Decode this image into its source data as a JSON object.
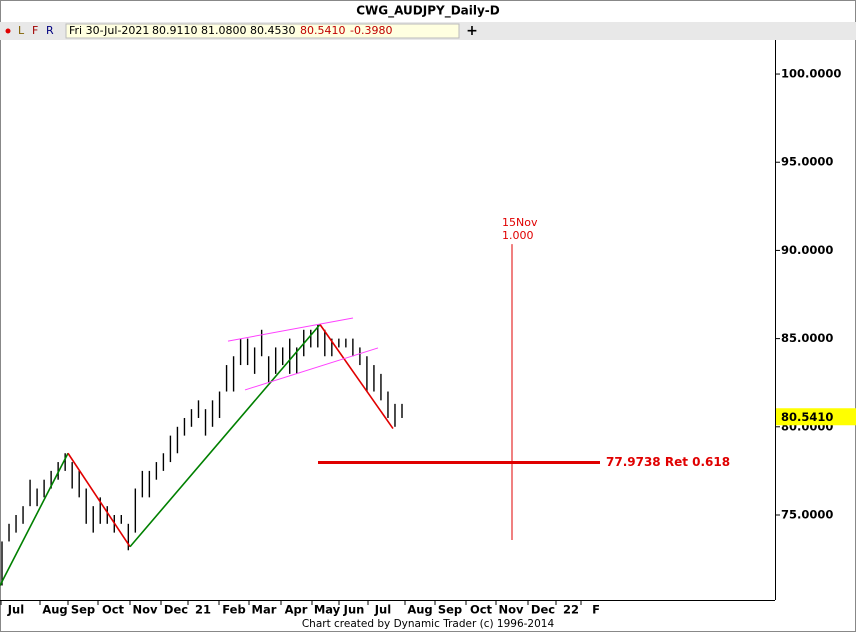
{
  "header": {
    "title": "CWG_AUDJPY_Daily-D"
  },
  "toolbar": {
    "buttons": [
      "L",
      "F",
      "R"
    ],
    "date": "Fri 30-Jul-2021",
    "open": "80.9110",
    "high": "81.0800",
    "low": "80.4530",
    "close": "80.5410",
    "change": "-0.3980"
  },
  "chart_data": {
    "type": "ohlc",
    "ylim": [
      70.18,
      101.93
    ],
    "yticks": [
      {
        "value": 75,
        "label": "75.0000"
      },
      {
        "value": 80,
        "label": "80.0000"
      },
      {
        "value": 85,
        "label": "85.0000"
      },
      {
        "value": 90,
        "label": "90.0000"
      },
      {
        "value": 95,
        "label": "95.0000"
      },
      {
        "value": 100,
        "label": "100.0000"
      }
    ],
    "categories": [
      "Jul",
      "Aug",
      "Sep",
      "Oct",
      "Nov",
      "Dec",
      "21",
      "Feb",
      "Mar",
      "Apr",
      "May",
      "Jun",
      "Jul",
      "Aug",
      "Sep",
      "Oct",
      "Nov",
      "Dec",
      "22",
      "F"
    ],
    "color": "#000000",
    "high": [
      73.5,
      74.5,
      75,
      75.5,
      77,
      76.5,
      77,
      77.5,
      78,
      78.5,
      78,
      77.5,
      76.5,
      75.5,
      76,
      75.5,
      75,
      75,
      74.5,
      76.5,
      77.5,
      77.5,
      78,
      78.5,
      79.5,
      80,
      80.5,
      81,
      81.5,
      81,
      81.5,
      82,
      83.5,
      84,
      85,
      85,
      84.5,
      85.5,
      84,
      84.5,
      84.5,
      85,
      84.5,
      85.5,
      85.5,
      85.8,
      85.5,
      85,
      85,
      85,
      85,
      84.5,
      84,
      83.5,
      83,
      82,
      81.3,
      81.3
    ],
    "low": [
      71,
      73.5,
      74,
      74.5,
      75.5,
      75.5,
      76,
      76.5,
      77,
      77.5,
      76.5,
      76,
      74.5,
      74,
      74.5,
      74.5,
      74,
      74.5,
      73,
      74,
      76,
      76,
      77,
      77.5,
      78,
      78.5,
      79.5,
      80,
      80.5,
      79.5,
      80,
      80.5,
      82,
      82,
      83.5,
      83.5,
      83,
      84,
      82.5,
      83,
      83.5,
      83,
      83,
      84,
      84.5,
      84.5,
      84,
      84,
      84.5,
      84.5,
      84,
      83.5,
      82,
      82,
      81.5,
      80.5,
      80,
      80.5
    ],
    "zigzag": {
      "values": [
        71.0,
        78.5,
        73.2,
        85.8,
        79.9
      ],
      "colors": [
        "#008000",
        "#e00000",
        "#008000",
        "#e00000"
      ]
    },
    "channel": {
      "color": "#ff40ff",
      "upper": [
        84.86,
        86.17
      ],
      "lower": [
        82.09,
        84.47
      ]
    },
    "retracement": {
      "value": 77.9738,
      "label": "77.9738 Ret 0.618",
      "color": "#e00000"
    },
    "time_target": {
      "date": "15Nov",
      "ratio": "1.000",
      "range": [
        90.36,
        73.58
      ],
      "color": "#e00000"
    },
    "last_price": {
      "value": 80.541,
      "label": "80.5410",
      "color": "#ffff00"
    },
    "footer": "Chart created by Dynamic Trader  (c) 1996-2014"
  }
}
